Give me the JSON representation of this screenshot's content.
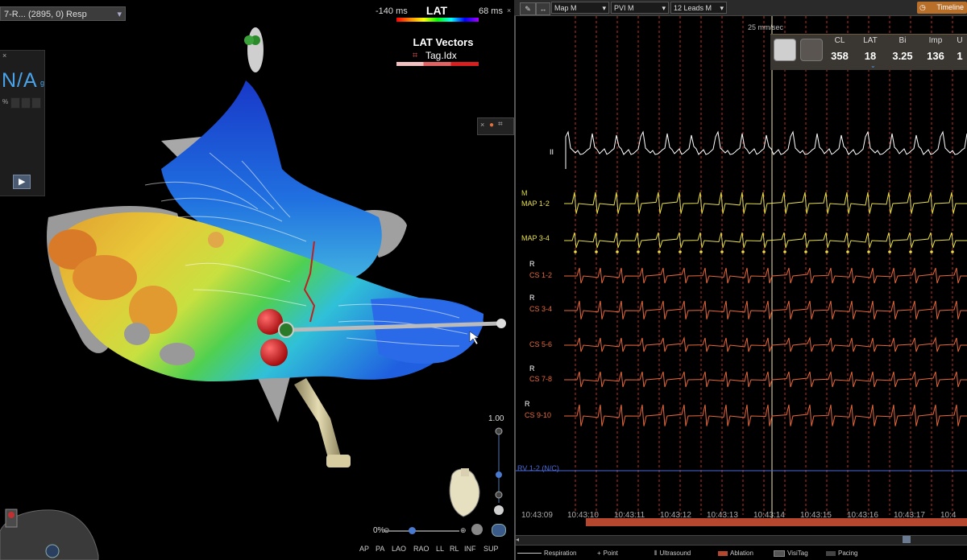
{
  "map_view": {
    "resp_selector": "7-R... (2895, 0) Resp",
    "lat_legend": {
      "min": "-140 ms",
      "title": "LAT",
      "max": "68 ms"
    },
    "lat_vectors": {
      "title": "LAT Vectors",
      "tag_label": "Tag.Idx"
    },
    "na_widget": {
      "value": "N/A",
      "sub": "g",
      "pct": "%"
    },
    "scale_value": "1.00",
    "zoom_pct": "0%",
    "view_buttons": [
      "AP",
      "PA",
      "LAO",
      "RAO",
      "LL",
      "RL",
      "INF",
      "SUP"
    ],
    "colors": {
      "accent": "#4aa3e8",
      "ablation_tag": "#d41a1a",
      "catheter": "#cbbf95"
    }
  },
  "signals": {
    "toolbar": {
      "dropdowns": [
        "Map M",
        "PVI M",
        "12 Leads M"
      ],
      "timeline_label": "Timeline"
    },
    "speed": "25 mm/sec",
    "stats": {
      "labels": [
        "CL",
        "LAT",
        "Bi",
        "Imp",
        "U"
      ],
      "values": [
        "358",
        "18",
        "3.25",
        "136",
        "1"
      ]
    },
    "channels": [
      {
        "name": "II",
        "color": "#ffffff"
      },
      {
        "name": "M",
        "color": "#d8d84a"
      },
      {
        "name": "MAP 1-2",
        "color": "#e8e04a"
      },
      {
        "name": "MAP 3-4",
        "color": "#e8e04a"
      },
      {
        "name": "R",
        "color": "#ffffff"
      },
      {
        "name": "CS 1-2",
        "color": "#e8683a"
      },
      {
        "name": "R",
        "color": "#ffffff"
      },
      {
        "name": "CS 3-4",
        "color": "#e8683a"
      },
      {
        "name": "CS 5-6",
        "color": "#e8683a"
      },
      {
        "name": "R",
        "color": "#ffffff"
      },
      {
        "name": "CS 7-8",
        "color": "#e8683a"
      },
      {
        "name": "R",
        "color": "#ffffff"
      },
      {
        "name": "CS 9-10",
        "color": "#e8683a"
      },
      {
        "name": "RV 1-2 (N/C)",
        "color": "#4a6ad8"
      }
    ],
    "time_labels": [
      "10:43:09",
      "10:43:10",
      "10:43:11",
      "10:43:12",
      "10:43:13",
      "10:43:14",
      "10:43:15",
      "10:43:16",
      "10:43:17",
      "10:4"
    ],
    "legend": [
      "Respiration",
      "Point",
      "Ultrasound",
      "Ablation",
      "VisiTag",
      "Pacing"
    ],
    "colors": {
      "ablation": "#b5472e",
      "cursor": "#f0e6b0",
      "marker": "#c03020"
    }
  }
}
